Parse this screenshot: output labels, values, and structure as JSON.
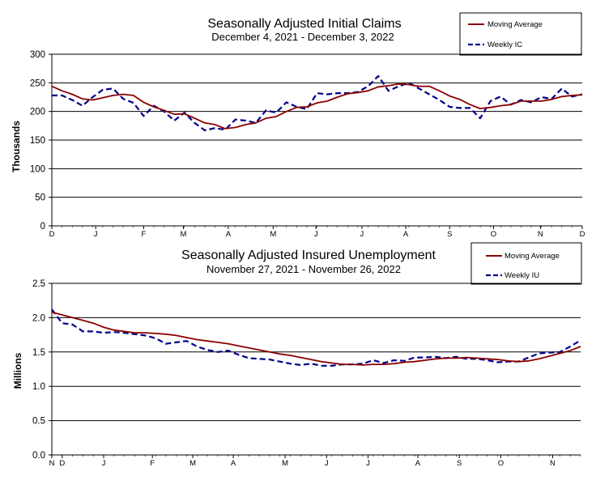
{
  "chart_data": [
    {
      "type": "line",
      "title": "Seasonally Adjusted Initial Claims",
      "subtitle": "December 4, 2021 - December 3, 2022",
      "ylabel": "Thousands",
      "xlabel": "",
      "ylim": [
        0,
        300
      ],
      "yticks": [
        "0",
        "50",
        "100",
        "150",
        "200",
        "250",
        "300"
      ],
      "month_labels": [
        "D",
        "J",
        "F",
        "M",
        "A",
        "M",
        "J",
        "J",
        "A",
        "S",
        "O",
        "N",
        "D"
      ],
      "month_positions": [
        0,
        4.3,
        9.0,
        12.9,
        17.3,
        21.7,
        25.9,
        30.4,
        34.7,
        39.0,
        43.3,
        47.9,
        52.0
      ],
      "x_range": [
        0,
        52
      ],
      "series": [
        {
          "name": "Moving Average",
          "color": "#8b0000",
          "style": "solid",
          "values": [
            244,
            236,
            230,
            222,
            220,
            224,
            228,
            230,
            228,
            216,
            208,
            202,
            195,
            196,
            188,
            180,
            177,
            170,
            172,
            177,
            180,
            188,
            191,
            200,
            207,
            208,
            215,
            218,
            225,
            231,
            233,
            236,
            243,
            245,
            248,
            247,
            244,
            244,
            236,
            227,
            221,
            212,
            205,
            207,
            210,
            212,
            218,
            218,
            218,
            221,
            226,
            228,
            229
          ]
        },
        {
          "name": "Weekly IC",
          "color": "#00008b",
          "style": "dashed",
          "values": [
            228,
            228,
            220,
            210,
            225,
            238,
            240,
            222,
            215,
            192,
            210,
            200,
            184,
            198,
            180,
            167,
            171,
            168,
            186,
            184,
            180,
            202,
            198,
            216,
            208,
            204,
            232,
            230,
            232,
            232,
            234,
            244,
            262,
            236,
            244,
            250,
            240,
            230,
            220,
            208,
            206,
            206,
            188,
            218,
            226,
            212,
            220,
            216,
            225,
            222,
            240,
            226,
            230
          ]
        }
      ],
      "legend": [
        "Moving Average",
        "Weekly IC"
      ],
      "legend_position": "top-right"
    },
    {
      "type": "line",
      "title": "Seasonally Adjusted Insured Unemployment",
      "subtitle": "November 27, 2021 - November 26, 2022",
      "ylabel": "Millions",
      "xlabel": "",
      "ylim": [
        0,
        2.5
      ],
      "yticks": [
        "0.0",
        "0.5",
        "1.0",
        "1.5",
        "2.0",
        "2.5"
      ],
      "month_labels": [
        "N",
        "D",
        "J",
        "F",
        "M",
        "A",
        "M",
        "J",
        "J",
        "A",
        "S",
        "O",
        "N"
      ],
      "month_positions": [
        0,
        1.0,
        5.0,
        9.7,
        13.6,
        17.5,
        22.5,
        26.5,
        30.5,
        35.3,
        39.3,
        43.3,
        48.3
      ],
      "x_range": [
        0,
        51
      ],
      "series": [
        {
          "name": "Moving Average",
          "color": "#8b0000",
          "style": "solid",
          "values": [
            2.08,
            2.04,
            2.0,
            1.96,
            1.92,
            1.86,
            1.82,
            1.8,
            1.78,
            1.78,
            1.77,
            1.76,
            1.74,
            1.71,
            1.68,
            1.66,
            1.64,
            1.62,
            1.59,
            1.56,
            1.53,
            1.5,
            1.47,
            1.45,
            1.42,
            1.39,
            1.36,
            1.34,
            1.32,
            1.32,
            1.31,
            1.32,
            1.32,
            1.33,
            1.35,
            1.36,
            1.38,
            1.4,
            1.41,
            1.41,
            1.42,
            1.41,
            1.4,
            1.39,
            1.37,
            1.36,
            1.37,
            1.4,
            1.44,
            1.48,
            1.52,
            1.58
          ]
        },
        {
          "name": "Weekly IU",
          "color": "#00008b",
          "style": "dashed",
          "values": [
            2.12,
            1.92,
            1.9,
            1.8,
            1.8,
            1.78,
            1.79,
            1.78,
            1.76,
            1.74,
            1.7,
            1.62,
            1.64,
            1.66,
            1.58,
            1.53,
            1.5,
            1.52,
            1.46,
            1.41,
            1.4,
            1.39,
            1.36,
            1.33,
            1.31,
            1.33,
            1.3,
            1.3,
            1.32,
            1.32,
            1.33,
            1.38,
            1.34,
            1.38,
            1.37,
            1.42,
            1.42,
            1.43,
            1.41,
            1.43,
            1.4,
            1.4,
            1.38,
            1.35,
            1.36,
            1.36,
            1.42,
            1.48,
            1.49,
            1.5,
            1.58,
            1.67
          ]
        }
      ],
      "legend": [
        "Moving Average",
        "Weekly IU"
      ],
      "legend_position": "top-right"
    }
  ]
}
